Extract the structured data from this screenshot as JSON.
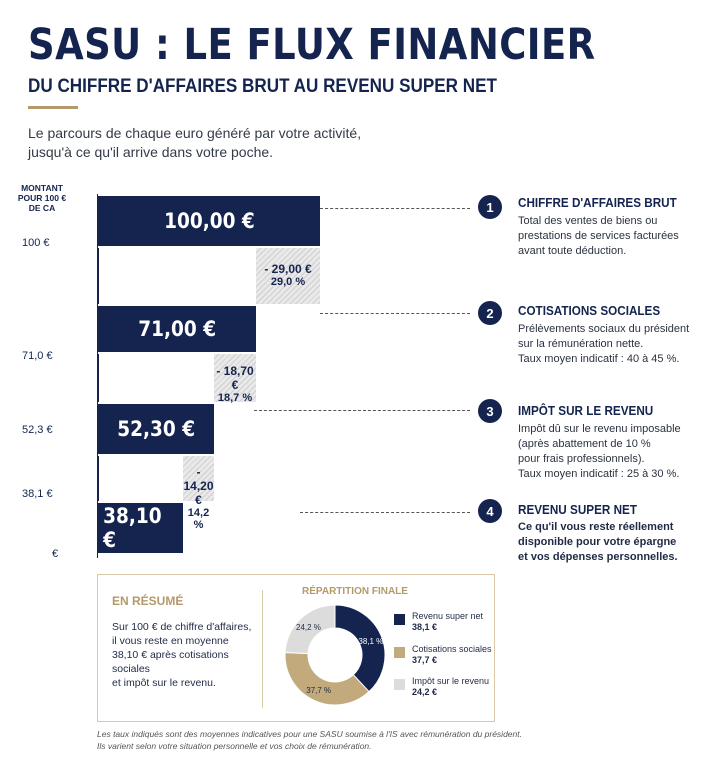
{
  "header": {
    "title": "SASU : LE FLUX FINANCIER",
    "subtitle": "DU CHIFFRE D'AFFAIRES BRUT AU REVENU SUPER NET",
    "intro_line1": "Le parcours de chaque euro généré par votre activité,",
    "intro_line2": "jusqu'à ce qu'il arrive dans votre poche."
  },
  "chart_data": {
    "type": "bar",
    "ylabel": "MONTANT POUR 100 € DE CA",
    "ticks": [
      "100 €",
      "71,0 €",
      "52,3 €",
      "38,1 €",
      "€"
    ],
    "bars": [
      {
        "value": 100.0,
        "label": "100,00 €"
      },
      {
        "value": 71.0,
        "label": "71,00 €"
      },
      {
        "value": 52.3,
        "label": "52,30 €"
      },
      {
        "value": 38.1,
        "label": "38,10 €"
      }
    ],
    "deductions": [
      {
        "value": 29.0,
        "label": "- 29,00 €",
        "pct": "29,0 %"
      },
      {
        "value": 18.7,
        "label": "- 18,70 €",
        "pct": "18,7 %"
      },
      {
        "value": 14.2,
        "label": "- 14,20 €",
        "pct": "14,2 %"
      }
    ]
  },
  "steps": [
    {
      "num": "1",
      "title": "CHIFFRE D'AFFAIRES BRUT",
      "lines": [
        "Total des ventes de biens ou",
        "prestations de services facturées",
        "avant toute déduction."
      ]
    },
    {
      "num": "2",
      "title": "COTISATIONS SOCIALES",
      "lines": [
        "Prélèvements sociaux du président",
        "sur la rémunération nette.",
        "Taux moyen indicatif : 40 à 45 %."
      ]
    },
    {
      "num": "3",
      "title": "IMPÔT SUR LE REVENU",
      "lines": [
        "Impôt dû sur le revenu imposable",
        "(après abattement de 10 %",
        "pour frais professionnels).",
        "Taux moyen indicatif : 25 à 30 %."
      ]
    },
    {
      "num": "4",
      "title": "REVENU SUPER NET",
      "lines": [
        "Ce qu'il vous reste réellement",
        "disponible pour votre épargne",
        "et vos dépenses personnelles."
      ]
    }
  ],
  "summary": {
    "title": "EN RÉSUMÉ",
    "lines": [
      "Sur 100 € de chiffre d'affaires,",
      "il vous reste en moyenne",
      "38,10 € après cotisations sociales",
      "et impôt sur le revenu."
    ]
  },
  "repartition": {
    "title": "RÉPARTITION FINALE",
    "colors": {
      "revenu": "#14244f",
      "cotisations": "#c2aa7c",
      "impot": "#dcdcdc"
    },
    "slices": [
      {
        "name": "Revenu super net",
        "value": 38.1,
        "value_label": "38,1 €",
        "pct_label": "38,1 %"
      },
      {
        "name": "Cotisations sociales",
        "value": 37.7,
        "value_label": "37,7 €",
        "pct_label": "37,7 %"
      },
      {
        "name": "Impôt sur le revenu",
        "value": 24.2,
        "value_label": "24,2 €",
        "pct_label": "24,2 %"
      }
    ]
  },
  "footnote": {
    "line1": "Les taux indiqués sont des moyennes indicatives pour une SASU soumise à l'IS avec rémunération du président.",
    "line2": "Ils varient selon votre situation personnelle et vos choix de rémunération."
  }
}
